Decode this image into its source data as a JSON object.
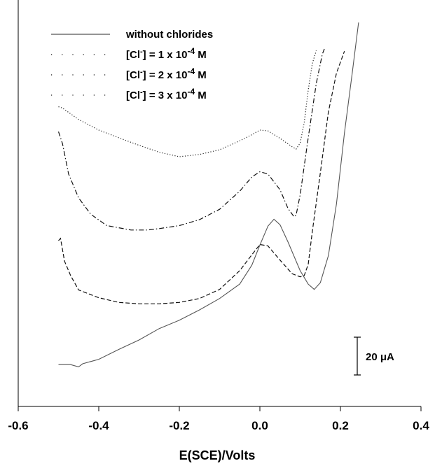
{
  "chart_data": {
    "type": "line",
    "title": "",
    "xlabel": "E(SCE)/Volts",
    "ylabel": "",
    "xlim": [
      -0.6,
      0.4
    ],
    "x_ticks": [
      "-0.6",
      "-0.4",
      "-0.2",
      "0.0",
      "0.2",
      "0.4"
    ],
    "x_tick_values": [
      -0.6,
      -0.4,
      -0.2,
      0.0,
      0.2,
      0.4
    ],
    "scale_bar_label": "20 μA",
    "scale_bar_value_uA": 20,
    "y_unit": "μA (relative, curves offset)",
    "ylim": [
      0,
      200
    ],
    "grid": false,
    "legend_position": "top-left",
    "series": [
      {
        "name": "without chlorides",
        "legend_main": "without chlorides",
        "legend_sup": "",
        "legend_tail": "",
        "style": "solid",
        "points": [
          [
            -0.5,
            20.6
          ],
          [
            -0.47,
            20.6
          ],
          [
            -0.45,
            19.5
          ],
          [
            -0.44,
            21.0
          ],
          [
            -0.4,
            23.2
          ],
          [
            -0.35,
            28.1
          ],
          [
            -0.3,
            32.7
          ],
          [
            -0.25,
            38.3
          ],
          [
            -0.2,
            42.4
          ],
          [
            -0.15,
            47.5
          ],
          [
            -0.1,
            53.1
          ],
          [
            -0.05,
            60.2
          ],
          [
            -0.02,
            69.5
          ],
          [
            0.0,
            79.4
          ],
          [
            0.02,
            88.7
          ],
          [
            0.035,
            92.1
          ],
          [
            0.05,
            89.4
          ],
          [
            0.07,
            80.9
          ],
          [
            0.1,
            66.8
          ],
          [
            0.12,
            60.2
          ],
          [
            0.135,
            57.6
          ],
          [
            0.15,
            60.9
          ],
          [
            0.17,
            74.2
          ],
          [
            0.19,
            99.6
          ],
          [
            0.21,
            134.5
          ],
          [
            0.23,
            165.3
          ],
          [
            0.24,
            181.0
          ],
          [
            0.245,
            188.9
          ]
        ]
      },
      {
        "name": "[Cl⁻] = 1 x 10⁻⁴ M",
        "legend_main": "[Cl",
        "legend_sup": "-",
        "legend_tail": "] = 1 x 10",
        "legend_exp": "-4",
        "legend_unit": " M",
        "style": "dash",
        "points": [
          [
            -0.5,
            81.6
          ],
          [
            -0.495,
            82.7
          ],
          [
            -0.485,
            71.5
          ],
          [
            -0.47,
            64.4
          ],
          [
            -0.45,
            57.3
          ],
          [
            -0.4,
            53.5
          ],
          [
            -0.35,
            51.2
          ],
          [
            -0.3,
            50.5
          ],
          [
            -0.25,
            50.5
          ],
          [
            -0.2,
            51.2
          ],
          [
            -0.15,
            53.1
          ],
          [
            -0.1,
            57.6
          ],
          [
            -0.05,
            66.8
          ],
          [
            -0.02,
            74.6
          ],
          [
            0.0,
            79.7
          ],
          [
            0.02,
            79.0
          ],
          [
            0.05,
            72.0
          ],
          [
            0.08,
            65.3
          ],
          [
            0.1,
            63.8
          ],
          [
            0.11,
            64.4
          ],
          [
            0.12,
            69.9
          ],
          [
            0.13,
            85.9
          ],
          [
            0.15,
            114.9
          ],
          [
            0.17,
            144.9
          ],
          [
            0.19,
            164.0
          ],
          [
            0.21,
            174.8
          ]
        ]
      },
      {
        "name": "[Cl⁻] = 2 x 10⁻⁴ M",
        "legend_main": "[Cl",
        "legend_sup": "-",
        "legend_tail": "] = 2 x 10",
        "legend_exp": "-4",
        "legend_unit": " M",
        "style": "dashdot",
        "points": [
          [
            -0.5,
            135.2
          ],
          [
            -0.49,
            129.2
          ],
          [
            -0.475,
            114.4
          ],
          [
            -0.45,
            102.6
          ],
          [
            -0.42,
            94.6
          ],
          [
            -0.38,
            89.0
          ],
          [
            -0.32,
            86.8
          ],
          [
            -0.28,
            86.8
          ],
          [
            -0.25,
            87.5
          ],
          [
            -0.2,
            89.0
          ],
          [
            -0.15,
            91.9
          ],
          [
            -0.1,
            97.0
          ],
          [
            -0.05,
            105.9
          ],
          [
            -0.02,
            112.9
          ],
          [
            0.0,
            115.5
          ],
          [
            0.02,
            114.4
          ],
          [
            0.05,
            106.6
          ],
          [
            0.07,
            97.4
          ],
          [
            0.085,
            93.3
          ],
          [
            0.09,
            94.1
          ],
          [
            0.1,
            104.1
          ],
          [
            0.12,
            132.2
          ],
          [
            0.14,
            158.9
          ],
          [
            0.155,
            173.3
          ],
          [
            0.16,
            175.9
          ]
        ]
      },
      {
        "name": "[Cl⁻] = 3 x 10⁻⁴ M",
        "legend_main": "[Cl",
        "legend_sup": "-",
        "legend_tail": "] = 3 x 10",
        "legend_exp": "-4",
        "legend_unit": " M",
        "style": "dot",
        "points": [
          [
            -0.5,
            147.5
          ],
          [
            -0.49,
            146.8
          ],
          [
            -0.45,
            141.2
          ],
          [
            -0.4,
            136.0
          ],
          [
            -0.35,
            132.2
          ],
          [
            -0.3,
            128.5
          ],
          [
            -0.25,
            125.1
          ],
          [
            -0.2,
            122.9
          ],
          [
            -0.15,
            124.0
          ],
          [
            -0.1,
            126.3
          ],
          [
            -0.05,
            130.7
          ],
          [
            -0.02,
            133.7
          ],
          [
            0.0,
            136.0
          ],
          [
            0.02,
            135.6
          ],
          [
            0.05,
            131.9
          ],
          [
            0.08,
            127.8
          ],
          [
            0.09,
            126.6
          ],
          [
            0.1,
            129.6
          ],
          [
            0.11,
            139.7
          ],
          [
            0.12,
            155.6
          ],
          [
            0.13,
            168.6
          ],
          [
            0.14,
            175.1
          ]
        ]
      }
    ]
  }
}
